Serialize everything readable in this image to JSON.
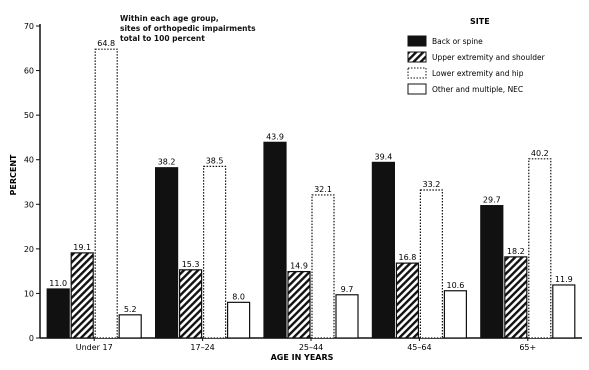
{
  "chart_data": {
    "type": "bar",
    "xlabel": "AGE IN YEARS",
    "ylabel": "PERCENT",
    "ylim": [
      0,
      70
    ],
    "yticks": [
      0,
      10,
      20,
      30,
      40,
      50,
      60,
      70
    ],
    "categories": [
      "Under 17",
      "17–24",
      "25–44",
      "45–64",
      "65+"
    ],
    "note": [
      "Within each age group,",
      "sites of orthopedic impairments",
      "total to 100 percent"
    ],
    "legend_title": "SITE",
    "legend_position": "top-right",
    "series": [
      {
        "name": "Back or spine",
        "values": [
          11.0,
          38.2,
          43.9,
          39.4,
          29.7
        ],
        "labels": [
          "11.0",
          "38.2",
          "43.9",
          "39.4",
          "29.7"
        ],
        "pattern": "solid-black"
      },
      {
        "name": "Upper extremity and shoulder",
        "values": [
          19.1,
          15.3,
          14.9,
          16.8,
          18.2
        ],
        "labels": [
          "19.1",
          "15.3",
          "14.9",
          "16.8",
          "18.2"
        ],
        "pattern": "diagonal-hatch"
      },
      {
        "name": "Lower extremity and hip",
        "values": [
          64.8,
          38.5,
          32.1,
          33.2,
          40.2
        ],
        "labels": [
          "64.8",
          "38.5",
          "32.1",
          "33.2",
          "40.2"
        ],
        "pattern": "dotted-white"
      },
      {
        "name": "Other and multiple, NEC",
        "values": [
          5.2,
          8.0,
          9.7,
          10.6,
          11.9
        ],
        "labels": [
          "5.2",
          "8.0",
          "9.7",
          "10.6",
          "11.9"
        ],
        "pattern": "white"
      }
    ],
    "grid": false
  }
}
